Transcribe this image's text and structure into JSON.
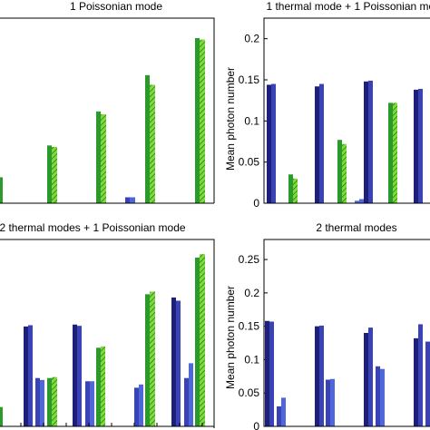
{
  "colors": {
    "dark_blue": "#1d1f7a",
    "navy": "#2b3590",
    "mid_blue": "#3a43b6",
    "light_blue": "#4f67d9",
    "green": "#2a9a2a",
    "light_green": "#7ddc3a",
    "hatch": "#1a5a1a"
  },
  "chart_data": [
    {
      "type": "bar",
      "title": "1 Poissonian mode",
      "ylabel": "",
      "ylim": [
        0,
        0.25
      ],
      "yticks": [],
      "series": [
        {
          "values": [
            0.035,
            0.078,
            0.124,
            0.008,
            0.173,
            0.223
          ],
          "color": "#2a9a2a"
        },
        {
          "values": [
            0.0,
            0.076,
            0.12,
            0.008,
            0.16,
            0.221
          ],
          "color": "#7ddc3a"
        }
      ]
    },
    {
      "type": "bar",
      "title": "1 thermal mode + 1 Poissonian mode",
      "ylabel": "Mean photon number",
      "ylim": [
        0,
        0.225
      ],
      "yticks": [
        "0.2",
        "0.15",
        "0.1",
        "0.05",
        "0"
      ],
      "ytick_values": [
        0.2,
        0.15,
        0.1,
        0.05,
        0.0
      ],
      "series": [
        {
          "values": [
            0.144,
            0.035,
            0.142,
            0.148,
            0.077,
            0.003,
            0.122,
            0.138
          ],
          "color": "#1d1f7a"
        },
        {
          "values": [
            0.145,
            0.03,
            0.145,
            0.149,
            0.072,
            0.005,
            0.122,
            0.139
          ],
          "color": "#3a43b6"
        }
      ]
    },
    {
      "type": "bar",
      "title": "2 thermal modes + 1 Poissonian mode",
      "ylabel": "",
      "ylim": [
        0,
        0.29
      ],
      "yticks": [],
      "series": [
        {
          "values": [
            0.03,
            0.155,
            0.075,
            0.158,
            0.07,
            0.122,
            0.06,
            0.2,
            0.075
          ]
        },
        {
          "values": [
            0.0,
            0.157,
            0.072,
            0.156,
            0.07,
            0.124,
            0.065,
            0.195,
            0.098
          ]
        }
      ]
    },
    {
      "type": "bar",
      "title": "2 thermal modes",
      "ylabel": "Mean photon number",
      "ylim": [
        0,
        0.28
      ],
      "yticks": [
        "0.25",
        "0.2",
        "0.15",
        "0.1",
        "0.05",
        "0"
      ],
      "ytick_values": [
        0.25,
        0.2,
        0.15,
        0.1,
        0.05,
        0.0
      ],
      "series": [
        {
          "values": [
            0.158,
            0.03,
            0.15,
            0.07,
            0.14,
            0.09,
            0.132,
            0.127
          ]
        },
        {
          "values": [
            0.157,
            0.043,
            0.151,
            0.071,
            0.148,
            0.086,
            0.153,
            0.13
          ]
        }
      ]
    }
  ]
}
